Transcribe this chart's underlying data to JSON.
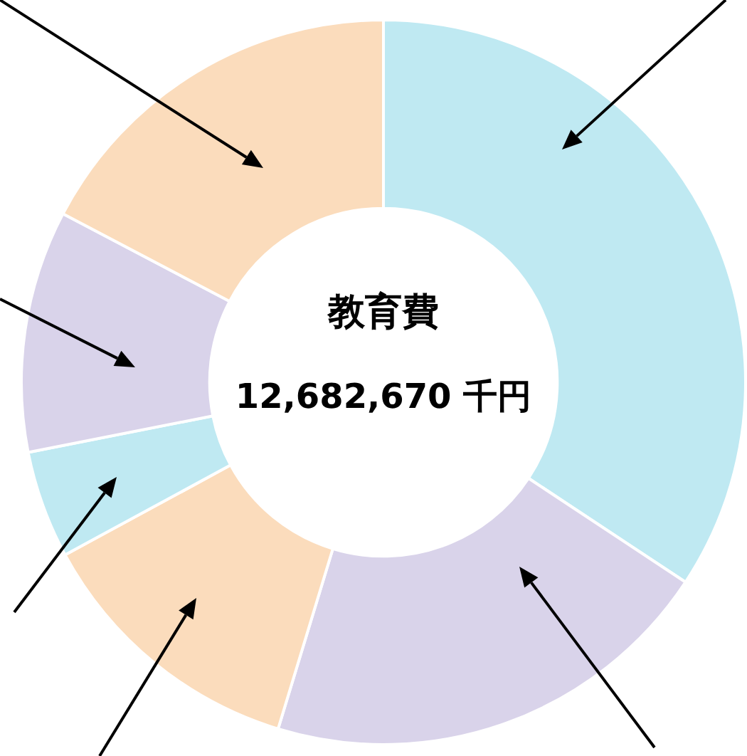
{
  "chart_data": {
    "type": "donut",
    "title": "教育費",
    "subtitle": "12,682,670 千円",
    "categories": [
      null,
      null,
      null,
      null,
      null,
      null
    ],
    "values": [
      34.3,
      20.4,
      12.4,
      4.8,
      10.8,
      17.3
    ],
    "colors": [
      "#bfe9f2",
      "#d9d3ea",
      "#fbdcbc",
      "#bfe9f2",
      "#d9d3ea",
      "#fbdcbc"
    ],
    "legend": false
  }
}
